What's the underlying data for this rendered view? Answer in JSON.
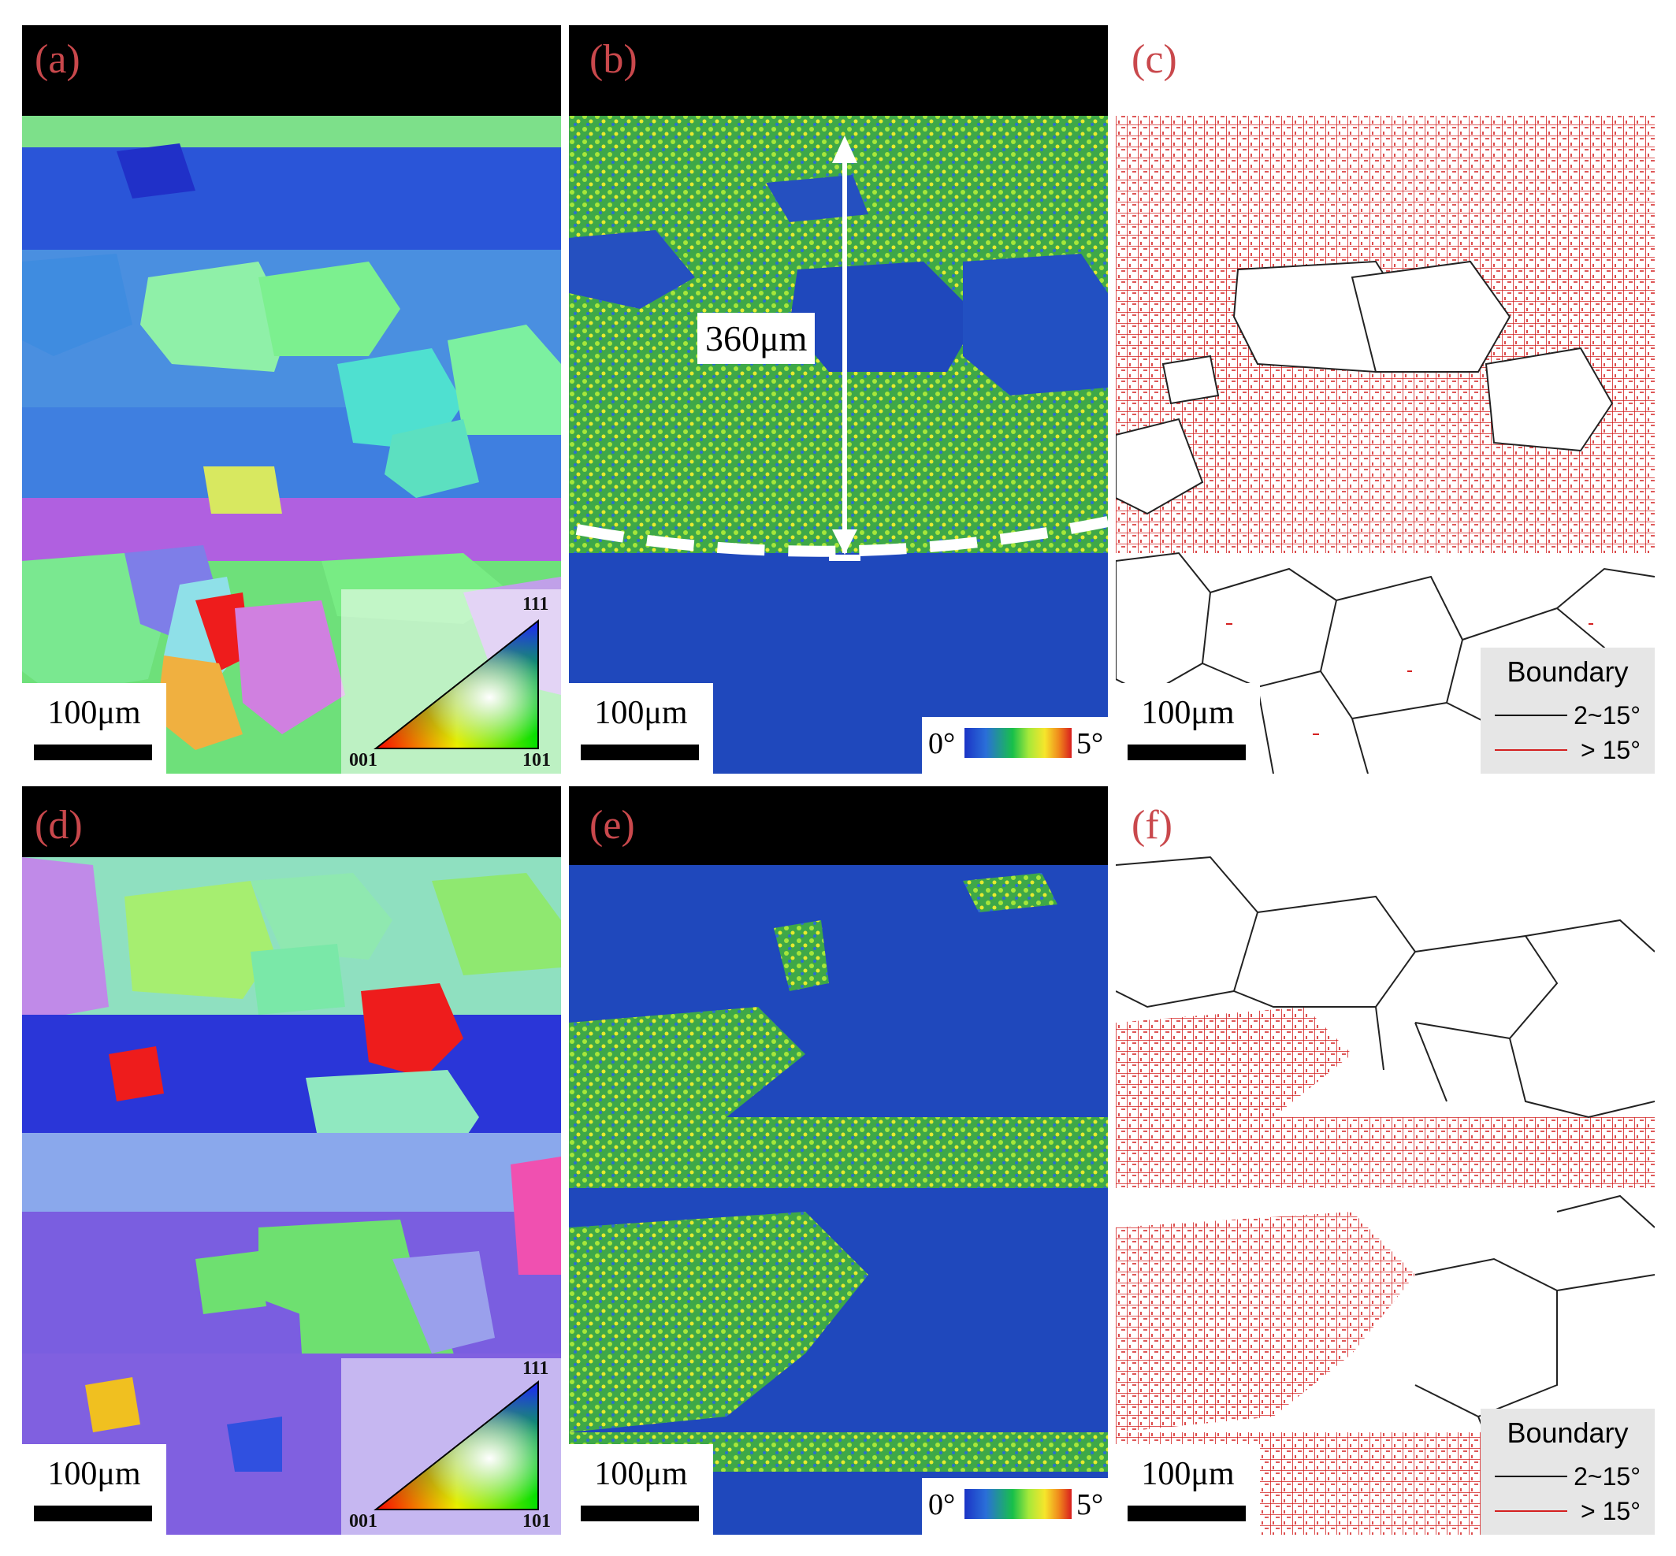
{
  "panels": {
    "a": {
      "label": "(a)",
      "scale": "100μm",
      "ipf": {
        "top": "111",
        "left": "001",
        "right": "101"
      }
    },
    "b": {
      "label": "(b)",
      "scale": "100μm",
      "depth": "360μm",
      "colorbar": {
        "min": "0°",
        "max": "5°"
      }
    },
    "c": {
      "label": "(c)",
      "scale": "100μm",
      "legend": {
        "title": "Boundary",
        "low": "2~15°",
        "high": "> 15°"
      }
    },
    "d": {
      "label": "(d)",
      "scale": "100μm",
      "ipf": {
        "top": "111",
        "left": "001",
        "right": "101"
      }
    },
    "e": {
      "label": "(e)",
      "scale": "100μm",
      "colorbar": {
        "min": "0°",
        "max": "5°"
      }
    },
    "f": {
      "label": "(f)",
      "scale": "100μm",
      "legend": {
        "title": "Boundary",
        "low": "2~15°",
        "high": "> 15°"
      }
    }
  },
  "colors": {
    "label": "#c9484c",
    "low_angle": "#000000",
    "high_angle": "#d42020"
  }
}
